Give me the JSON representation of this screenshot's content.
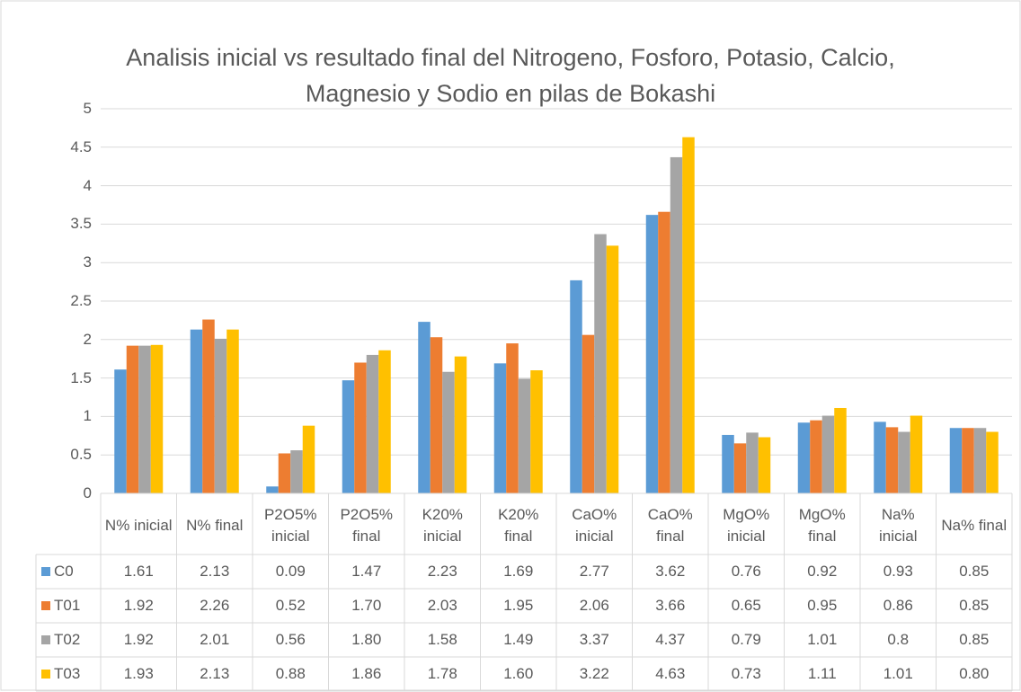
{
  "chart_data": {
    "type": "bar",
    "title": "Analisis inicial vs resultado final del Nitrogeno, Fosforo, Potasio, Calcio, Magnesio y Sodio en pilas de Bokashi",
    "categories": [
      "N% inicial",
      "N% final",
      "P2O5% inicial",
      "P2O5% final",
      "K20% inicial",
      "K20% final",
      "CaO% inicial",
      "CaO% final",
      "MgO% inicial",
      "MgO% final",
      "Na% inicial",
      "Na% final"
    ],
    "series": [
      {
        "name": "C0",
        "color": "#5b9bd5",
        "values": [
          1.61,
          2.13,
          0.09,
          1.47,
          2.23,
          1.69,
          2.77,
          3.62,
          0.76,
          0.92,
          0.93,
          0.85
        ],
        "value_labels": [
          "1.61",
          "2.13",
          "0.09",
          "1.47",
          "2.23",
          "1.69",
          "2.77",
          "3.62",
          "0.76",
          "0.92",
          "0.93",
          "0.85"
        ]
      },
      {
        "name": "T01",
        "color": "#ed7d31",
        "values": [
          1.92,
          2.26,
          0.52,
          1.7,
          2.03,
          1.95,
          2.06,
          3.66,
          0.65,
          0.95,
          0.86,
          0.85
        ],
        "value_labels": [
          "1.92",
          "2.26",
          "0.52",
          "1.70",
          "2.03",
          "1.95",
          "2.06",
          "3.66",
          "0.65",
          "0.95",
          "0.86",
          "0.85"
        ]
      },
      {
        "name": "T02",
        "color": "#a5a5a5",
        "values": [
          1.92,
          2.01,
          0.56,
          1.8,
          1.58,
          1.49,
          3.37,
          4.37,
          0.79,
          1.01,
          0.8,
          0.85
        ],
        "value_labels": [
          "1.92",
          "2.01",
          "0.56",
          "1.80",
          "1.58",
          "1.49",
          "3.37",
          "4.37",
          "0.79",
          "1.01",
          "0.8",
          "0.85"
        ]
      },
      {
        "name": "T03",
        "color": "#ffc000",
        "values": [
          1.93,
          2.13,
          0.88,
          1.86,
          1.78,
          1.6,
          3.22,
          4.63,
          0.73,
          1.11,
          1.01,
          0.8
        ],
        "value_labels": [
          "1.93",
          "2.13",
          "0.88",
          "1.86",
          "1.78",
          "1.60",
          "3.22",
          "4.63",
          "0.73",
          "1.11",
          "1.01",
          "0.80"
        ]
      }
    ],
    "ylim": [
      0,
      5
    ],
    "yticks": [
      0,
      0.5,
      1,
      1.5,
      2,
      2.5,
      3,
      3.5,
      4,
      4.5,
      5
    ],
    "grid": true
  }
}
